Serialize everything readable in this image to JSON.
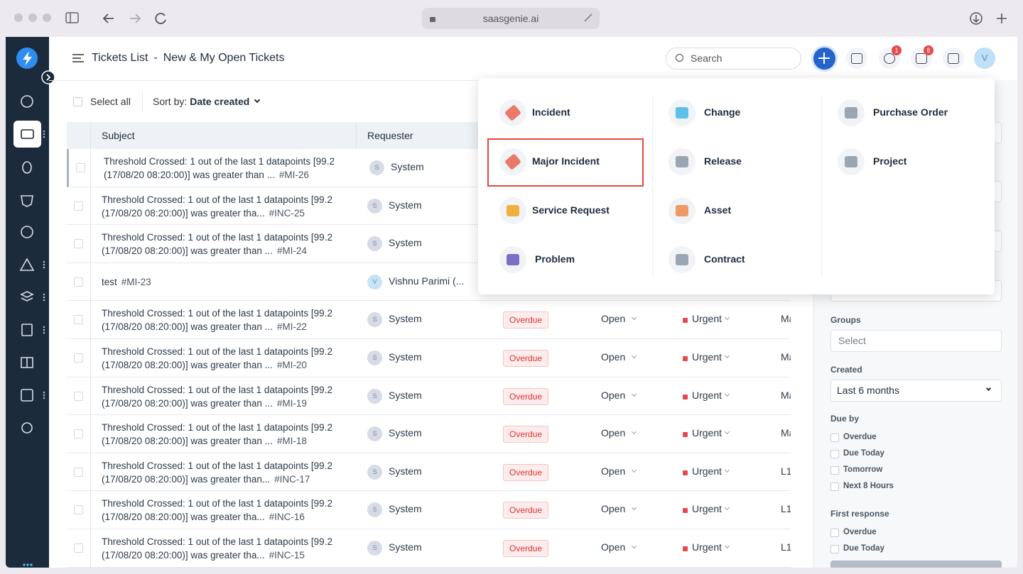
{
  "browser": {
    "url": "saasgenie.ai"
  },
  "header": {
    "title": "Tickets List",
    "separator": "-",
    "subtitle": "New & My Open Tickets",
    "search_placeholder": "Search",
    "help_badge": "1",
    "notifications_badge": "8",
    "avatar": "V"
  },
  "toolbar": {
    "select_all": "Select all",
    "sort_label": "Sort by:",
    "sort_value": "Date created"
  },
  "table": {
    "columns": [
      "Subject",
      "Requester"
    ],
    "rows": [
      {
        "subject": [
          "Threshold Crossed: 1 out of the last 1 datapoints [99.2",
          "(17/08/20 08:20:00)] was greater than ..."
        ],
        "id": "#MI-26",
        "avatar": "S",
        "requester": "System"
      },
      {
        "subject": [
          "Threshold Crossed: 1 out of the last 1 datapoints [99.2",
          "(17/08/20 08:20:00)] was greater tha..."
        ],
        "id": "#INC-25",
        "avatar": "S",
        "requester": "System"
      },
      {
        "subject": [
          "Threshold Crossed: 1 out of the last 1 datapoints [99.2",
          "(17/08/20 08:20:00)] was greater than ..."
        ],
        "id": "#MI-24",
        "avatar": "S",
        "requester": "System"
      },
      {
        "subject": [
          "test"
        ],
        "id": "#MI-23",
        "avatar": "V",
        "requester": "Vishnu Parimi (..."
      },
      {
        "subject": [
          "Threshold Crossed: 1 out of the last 1 datapoints [99.2",
          "(17/08/20 08:20:00)] was greater than ..."
        ],
        "id": "#MI-22",
        "avatar": "S",
        "requester": "System",
        "due": "Overdue",
        "status": "Open",
        "priority": "Urgent",
        "group": "Ma"
      },
      {
        "subject": [
          "Threshold Crossed: 1 out of the last 1 datapoints [99.2",
          "(17/08/20 08:20:00)] was greater than ..."
        ],
        "id": "#MI-20",
        "avatar": "S",
        "requester": "System",
        "due": "Overdue",
        "status": "Open",
        "priority": "Urgent",
        "group": "Ma"
      },
      {
        "subject": [
          "Threshold Crossed: 1 out of the last 1 datapoints [99.2",
          "(17/08/20 08:20:00)] was greater than ..."
        ],
        "id": "#MI-19",
        "avatar": "S",
        "requester": "System",
        "due": "Overdue",
        "status": "Open",
        "priority": "Urgent",
        "group": "Ma"
      },
      {
        "subject": [
          "Threshold Crossed: 1 out of the last 1 datapoints [99.2",
          "(17/08/20 08:20:00)] was greater than ..."
        ],
        "id": "#MI-18",
        "avatar": "S",
        "requester": "System",
        "due": "Overdue",
        "status": "Open",
        "priority": "Urgent",
        "group": "Ma"
      },
      {
        "subject": [
          "Threshold Crossed: 1 out of the last 1 datapoints [99.2",
          "(17/08/20 08:20:00)] was greater than..."
        ],
        "id": "#INC-17",
        "avatar": "S",
        "requester": "System",
        "due": "Overdue",
        "status": "Open",
        "priority": "Urgent",
        "group": "L1"
      },
      {
        "subject": [
          "Threshold Crossed: 1 out of the last 1 datapoints [99.2",
          "(17/08/20 08:20:00)] was greater tha..."
        ],
        "id": "#INC-16",
        "avatar": "S",
        "requester": "System",
        "due": "Overdue",
        "status": "Open",
        "priority": "Urgent",
        "group": "L1"
      },
      {
        "subject": [
          "Threshold Crossed: 1 out of the last 1 datapoints [99.2",
          "(17/08/20 08:20:00)] was greater tha..."
        ],
        "id": "#INC-15",
        "avatar": "S",
        "requester": "System",
        "due": "Overdue",
        "status": "Open",
        "priority": "Urgent",
        "group": "L1"
      }
    ]
  },
  "new_menu": {
    "columns": [
      [
        "Incident",
        "Major Incident",
        "Service Request",
        "Problem"
      ],
      [
        "Change",
        "Release",
        "Asset",
        "Contract"
      ],
      [
        "Purchase Order",
        "Project"
      ]
    ]
  },
  "filters": {
    "groups": {
      "label": "Groups",
      "placeholder": "Select"
    },
    "created": {
      "label": "Created",
      "value": "Last 6 months"
    },
    "due_by": {
      "label": "Due by",
      "options": [
        "Overdue",
        "Due Today",
        "Tomorrow",
        "Next 8 Hours"
      ]
    },
    "first_response": {
      "label": "First response",
      "options": [
        "Overdue",
        "Due Today"
      ]
    }
  }
}
